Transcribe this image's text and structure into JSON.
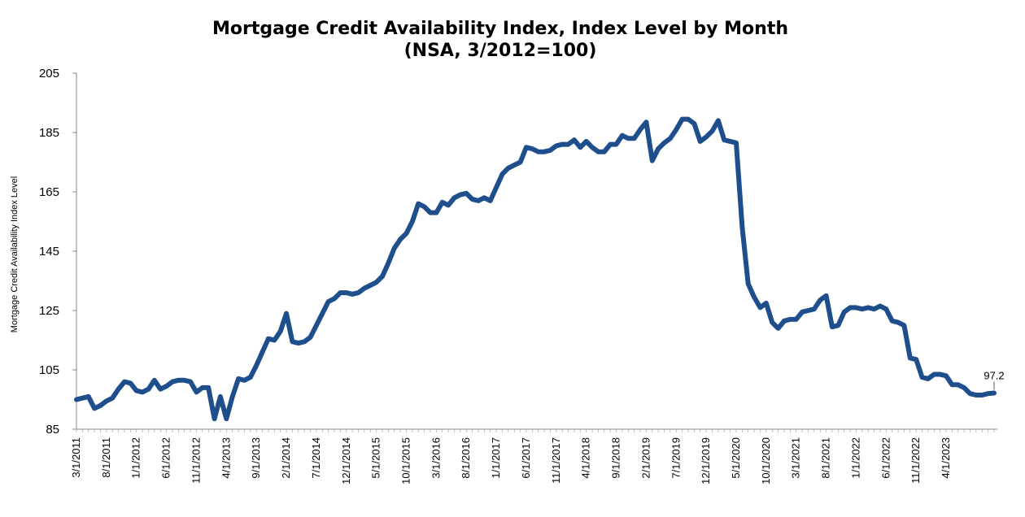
{
  "chart_data": {
    "type": "line",
    "title": "Mortgage Credit Availability Index, Index Level by Month",
    "subtitle": "(NSA, 3/2012=100)",
    "xlabel": "",
    "ylabel": "Mortgage Credit Availability Index Level",
    "ylim": [
      85,
      205
    ],
    "yticks": [
      85,
      105,
      125,
      145,
      165,
      185,
      205
    ],
    "xticks": [
      "3/1/2011",
      "8/1/2011",
      "1/1/2012",
      "6/1/2012",
      "11/1/2012",
      "4/1/2013",
      "9/1/2013",
      "2/1/2014",
      "7/1/2014",
      "12/1/2014",
      "5/1/2015",
      "10/1/2015",
      "3/1/2016",
      "8/1/2016",
      "1/1/2017",
      "6/1/2017",
      "11/1/2017",
      "4/1/2018",
      "9/1/2018",
      "2/1/2019",
      "7/1/2019",
      "12/1/2019",
      "5/1/2020",
      "10/1/2020",
      "3/1/2021",
      "8/1/2021",
      "1/1/2022",
      "6/1/2022",
      "11/1/2022",
      "4/1/2023"
    ],
    "grid": false,
    "color": "#1f4e8c",
    "end_label": "97.2",
    "series": [
      {
        "name": "",
        "start": "3/1/2011",
        "values": [
          95.0,
          95.5,
          96.0,
          92.0,
          93.0,
          94.5,
          95.5,
          98.5,
          101.0,
          100.5,
          98.0,
          97.5,
          98.5,
          101.5,
          98.5,
          99.5,
          101.0,
          101.5,
          101.5,
          101.0,
          97.5,
          99.0,
          99.0,
          88.5,
          96.0,
          88.5,
          96.0,
          102.0,
          101.5,
          102.5,
          106.5,
          111.0,
          115.5,
          115.0,
          118.0,
          124.0,
          114.5,
          114.0,
          114.5,
          116.0,
          120.0,
          124.0,
          128.0,
          129.0,
          131.0,
          131.0,
          130.5,
          131.0,
          132.5,
          133.5,
          134.5,
          136.5,
          141.0,
          146.0,
          149.0,
          151.0,
          155.0,
          161.0,
          160.0,
          158.0,
          158.0,
          161.5,
          160.5,
          163.0,
          164.0,
          164.5,
          162.5,
          162.0,
          163.0,
          162.0,
          166.5,
          171.0,
          173.0,
          174.0,
          175.0,
          180.0,
          179.5,
          178.5,
          178.5,
          179.0,
          180.5,
          181.0,
          181.0,
          182.5,
          180.0,
          182.0,
          180.0,
          178.5,
          178.5,
          181.0,
          181.0,
          184.0,
          183.0,
          183.0,
          186.0,
          188.5,
          175.5,
          179.5,
          181.5,
          183.0,
          186.0,
          189.5,
          189.5,
          188.0,
          182.0,
          183.5,
          185.5,
          189.0,
          182.5,
          182.0,
          181.5,
          153.0,
          134.0,
          129.5,
          126.0,
          127.5,
          121.0,
          119.0,
          121.5,
          122.0,
          122.0,
          124.5,
          125.0,
          125.5,
          128.5,
          130.0,
          119.5,
          120.0,
          124.5,
          126.0,
          126.0,
          125.5,
          126.0,
          125.5,
          126.5,
          125.5,
          121.5,
          121.0,
          120.0,
          109.0,
          108.5,
          102.5,
          102.0,
          103.5,
          103.5,
          103.0,
          100.0,
          100.0,
          99.0,
          97.0,
          96.5,
          96.5,
          97.0,
          97.2
        ]
      }
    ]
  }
}
